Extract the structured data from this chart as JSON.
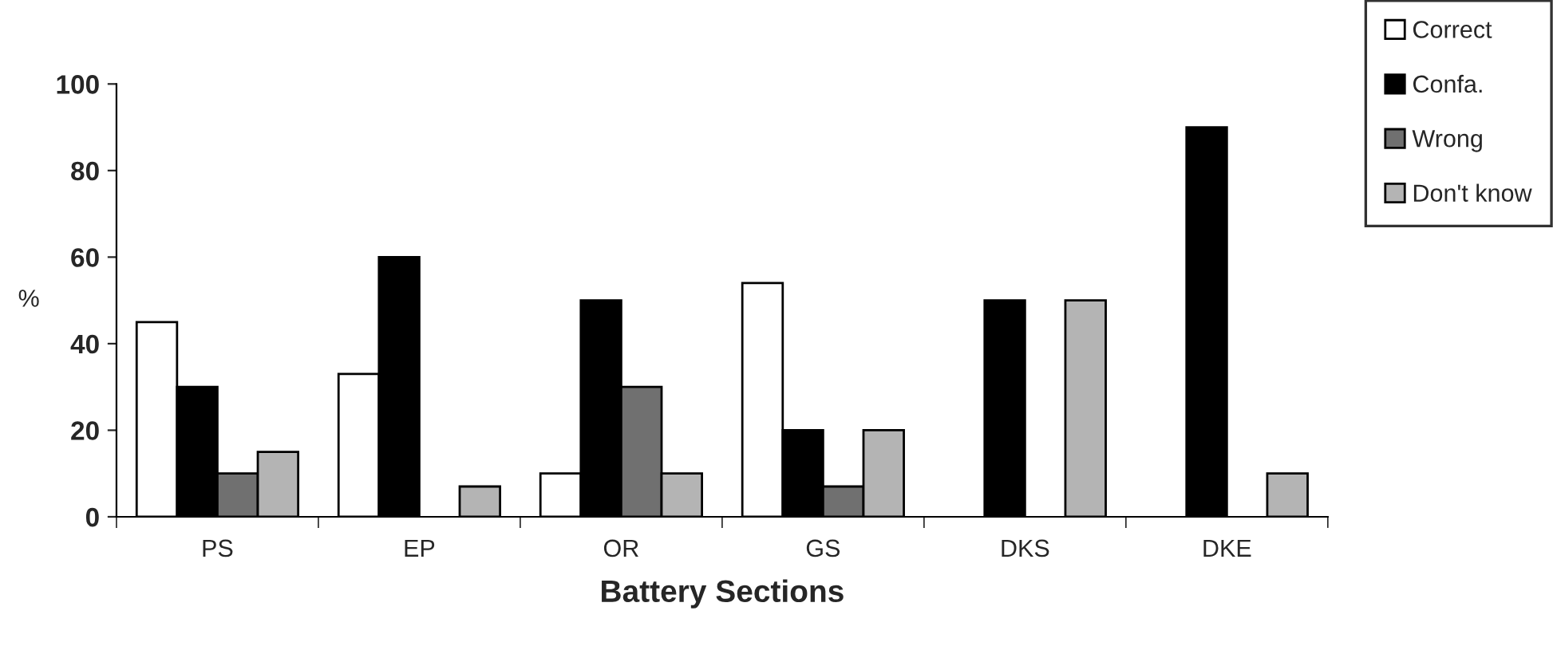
{
  "chart_data": {
    "type": "bar",
    "xlabel": "Battery Sections",
    "ylabel": "%",
    "categories": [
      "PS",
      "EP",
      "OR",
      "GS",
      "DKS",
      "DKE"
    ],
    "series": [
      {
        "name": "Correct",
        "color": "#ffffff",
        "values": [
          45,
          33,
          10,
          54,
          null,
          null
        ]
      },
      {
        "name": "Confa.",
        "color": "#000000",
        "values": [
          30,
          60,
          50,
          20,
          50,
          90
        ]
      },
      {
        "name": "Wrong",
        "color": "#707070",
        "values": [
          10,
          null,
          30,
          7,
          null,
          null
        ]
      },
      {
        "name": "Don't know",
        "color": "#b4b4b4",
        "values": [
          15,
          7,
          10,
          20,
          50,
          10
        ]
      }
    ],
    "ylim": [
      0,
      100
    ],
    "yticks": [
      0,
      20,
      40,
      60,
      80,
      100
    ],
    "grid": false,
    "legend": "top right"
  }
}
